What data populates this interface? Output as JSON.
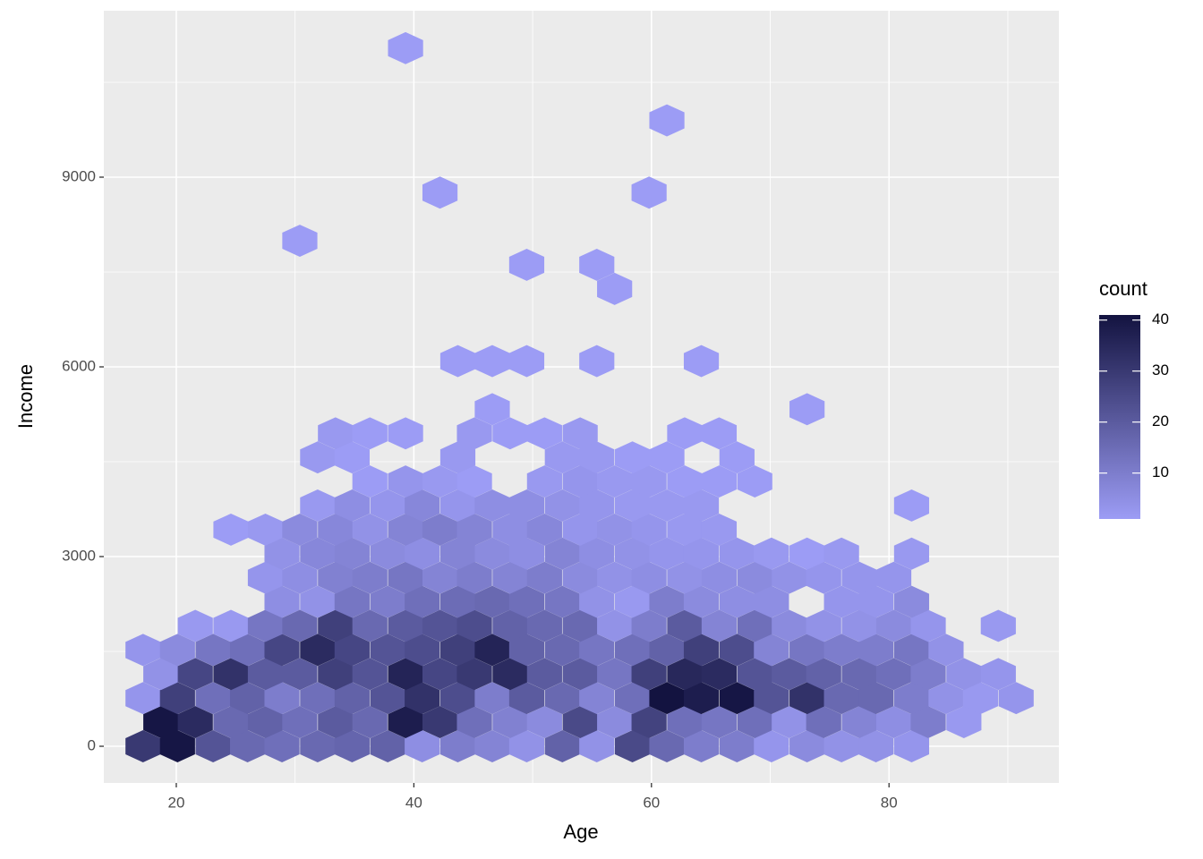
{
  "chart_data": {
    "type": "hexbin",
    "x_label": "Age",
    "y_label": "Income",
    "xlim": [
      13.9,
      94.3
    ],
    "ylim": [
      -580,
      11632
    ],
    "xticks": [
      20,
      40,
      60,
      80
    ],
    "yticks": [
      0,
      3000,
      6000,
      9000
    ],
    "grid": true,
    "legend": {
      "title": "count",
      "position": "right",
      "limits": [
        1,
        41
      ],
      "ticks": [
        10,
        20,
        30,
        40
      ]
    },
    "colors": {
      "low": "#9c9cf5",
      "high": "#131340"
    },
    "rows": [
      {
        "y": 0,
        "x": [
          17.2,
          20.1,
          23.1,
          26.0,
          28.9,
          31.9,
          34.8,
          37.8,
          40.7,
          43.7,
          46.6,
          49.5,
          52.5,
          55.4,
          58.4,
          61.3,
          64.2,
          67.2,
          70.1,
          73.1,
          76.0,
          78.9,
          81.9
        ],
        "values": [
          30,
          40,
          22,
          16,
          14,
          16,
          17,
          18,
          5,
          10,
          8,
          4,
          18,
          4,
          25,
          16,
          10,
          10,
          3,
          6,
          4,
          4,
          3
        ]
      },
      {
        "y": 381,
        "x": [
          18.7,
          21.6,
          24.6,
          27.5,
          30.4,
          33.4,
          36.3,
          39.3,
          42.2,
          45.1,
          48.1,
          51.0,
          54.0,
          56.9,
          59.8,
          62.8,
          65.7,
          68.7,
          71.6,
          74.5,
          77.5,
          80.4,
          83.3,
          86.3
        ],
        "values": [
          40,
          34,
          16,
          18,
          14,
          20,
          16,
          38,
          30,
          14,
          9,
          6,
          25,
          6,
          27,
          14,
          12,
          14,
          4,
          14,
          8,
          5,
          10,
          2
        ]
      },
      {
        "y": 761,
        "x": [
          17.2,
          20.1,
          23.1,
          26.0,
          28.9,
          31.9,
          34.8,
          37.8,
          40.7,
          43.7,
          46.6,
          49.5,
          52.5,
          55.4,
          58.4,
          61.3,
          64.2,
          67.2,
          70.1,
          73.1,
          76.0,
          78.9,
          81.9,
          84.8,
          87.7,
          90.7
        ],
        "values": [
          3,
          28,
          14,
          18,
          10,
          14,
          18,
          22,
          32,
          24,
          10,
          20,
          16,
          8,
          14,
          41,
          38,
          40,
          22,
          32,
          16,
          16,
          10,
          4,
          2,
          3
        ]
      },
      {
        "y": 1142,
        "x": [
          18.7,
          21.6,
          24.6,
          27.5,
          30.4,
          33.4,
          36.3,
          39.3,
          42.2,
          45.1,
          48.1,
          51.0,
          54.0,
          56.9,
          59.8,
          62.8,
          65.7,
          68.7,
          71.6,
          74.5,
          77.5,
          80.4,
          83.3,
          86.3,
          89.2
        ],
        "values": [
          4,
          26,
          32,
          20,
          20,
          28,
          22,
          36,
          26,
          30,
          34,
          20,
          20,
          12,
          28,
          35,
          34,
          22,
          20,
          18,
          16,
          14,
          10,
          4,
          3
        ]
      },
      {
        "y": 1523,
        "x": [
          17.2,
          20.1,
          23.1,
          26.0,
          28.9,
          31.9,
          34.8,
          37.8,
          40.7,
          43.7,
          46.6,
          49.5,
          52.5,
          55.4,
          58.4,
          61.3,
          64.2,
          67.2,
          70.1,
          73.1,
          76.0,
          78.9,
          81.9,
          84.8
        ],
        "values": [
          3,
          6,
          12,
          14,
          26,
          34,
          26,
          22,
          24,
          28,
          36,
          18,
          16,
          12,
          14,
          18,
          28,
          24,
          8,
          12,
          10,
          10,
          12,
          4
        ]
      },
      {
        "y": 1904,
        "x": [
          21.6,
          24.6,
          27.5,
          30.4,
          33.4,
          36.3,
          39.3,
          42.2,
          45.1,
          48.1,
          51.0,
          54.0,
          56.9,
          59.8,
          62.8,
          65.7,
          68.7,
          71.6,
          74.5,
          77.5,
          80.4,
          83.3,
          89.2
        ],
        "values": [
          2,
          2,
          12,
          16,
          28,
          16,
          20,
          22,
          24,
          18,
          16,
          16,
          4,
          10,
          20,
          8,
          14,
          6,
          4,
          4,
          6,
          3,
          2
        ]
      },
      {
        "y": 2284,
        "x": [
          28.9,
          31.9,
          34.8,
          37.8,
          40.7,
          43.7,
          46.6,
          49.5,
          52.5,
          55.4,
          58.4,
          61.3,
          64.2,
          67.2,
          70.1,
          76.0,
          78.9,
          81.9
        ],
        "values": [
          5,
          4,
          12,
          10,
          14,
          15,
          16,
          14,
          12,
          4,
          2,
          10,
          6,
          5,
          5,
          3,
          3,
          6
        ]
      },
      {
        "y": 2665,
        "x": [
          27.5,
          30.4,
          33.4,
          36.3,
          39.3,
          42.2,
          45.1,
          48.1,
          51.0,
          54.0,
          56.9,
          59.8,
          62.8,
          65.7,
          68.7,
          71.6,
          74.5,
          77.5,
          80.4
        ],
        "values": [
          3,
          5,
          9,
          10,
          12,
          8,
          10,
          8,
          10,
          6,
          4,
          5,
          4,
          5,
          6,
          4,
          3,
          3,
          3
        ]
      },
      {
        "y": 3046,
        "x": [
          28.9,
          31.9,
          34.8,
          37.8,
          40.7,
          43.7,
          46.6,
          49.5,
          52.5,
          55.4,
          58.4,
          61.3,
          64.2,
          67.2,
          70.1,
          73.1,
          76.0,
          81.9
        ],
        "values": [
          4,
          7,
          8,
          6,
          5,
          8,
          6,
          5,
          8,
          5,
          4,
          3,
          3,
          3,
          2,
          1,
          2,
          2
        ]
      },
      {
        "y": 3426,
        "x": [
          24.6,
          27.5,
          30.4,
          33.4,
          36.3,
          39.3,
          42.2,
          45.1,
          48.1,
          51.0,
          54.0,
          56.9,
          59.8,
          62.8,
          65.7
        ],
        "values": [
          1,
          2,
          6,
          7,
          4,
          8,
          10,
          8,
          5,
          7,
          3,
          4,
          3,
          2,
          2
        ]
      },
      {
        "y": 3807,
        "x": [
          31.9,
          34.8,
          37.8,
          40.7,
          43.7,
          46.6,
          49.5,
          52.5,
          55.4,
          58.4,
          61.3,
          64.2,
          81.9
        ],
        "values": [
          2,
          5,
          3,
          7,
          3,
          5,
          5,
          4,
          3,
          2,
          2,
          2,
          1
        ]
      },
      {
        "y": 4188,
        "x": [
          36.3,
          39.3,
          42.2,
          45.1,
          51.0,
          54.0,
          56.9,
          59.8,
          62.8,
          65.7,
          68.7
        ],
        "values": [
          1,
          3,
          2,
          1,
          2,
          3,
          2,
          2,
          1,
          1,
          1
        ]
      },
      {
        "y": 4568,
        "x": [
          31.9,
          34.8,
          43.7,
          52.5,
          55.4,
          58.4,
          61.3,
          67.2
        ],
        "values": [
          2,
          1,
          2,
          2,
          2,
          1,
          1,
          1
        ]
      },
      {
        "y": 4949,
        "x": [
          33.4,
          36.3,
          39.3,
          45.1,
          48.1,
          51.0,
          54.0,
          62.8,
          65.7
        ],
        "values": [
          2,
          1,
          1,
          2,
          1,
          1,
          2,
          1,
          1
        ]
      },
      {
        "y": 5330,
        "x": [
          46.6,
          73.1
        ],
        "values": [
          1,
          1
        ]
      },
      {
        "y": 6091,
        "x": [
          43.7,
          46.6,
          49.5,
          55.4,
          64.2
        ],
        "values": [
          1,
          1,
          1,
          1,
          1
        ]
      },
      {
        "y": 7233,
        "x": [
          56.9
        ],
        "values": [
          1
        ]
      },
      {
        "y": 7614,
        "x": [
          49.5,
          55.4
        ],
        "values": [
          1,
          1
        ]
      },
      {
        "y": 7995,
        "x": [
          30.4
        ],
        "values": [
          1
        ]
      },
      {
        "y": 8756,
        "x": [
          42.2,
          59.8
        ],
        "values": [
          1,
          1
        ]
      },
      {
        "y": 9898,
        "x": [
          61.3
        ],
        "values": [
          1
        ]
      },
      {
        "y": 11040,
        "x": [
          39.3
        ],
        "values": [
          1
        ]
      }
    ]
  }
}
